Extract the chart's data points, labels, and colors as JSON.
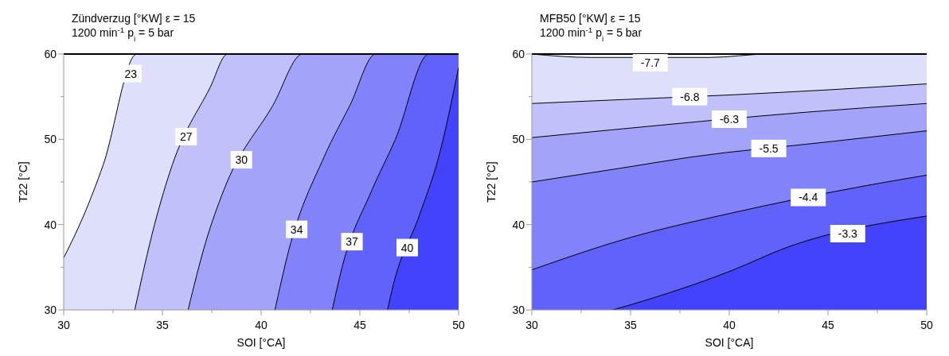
{
  "chart_data": [
    {
      "type": "area",
      "title": "Zündverzug [°KW] ε = 15",
      "subtitle": "1200 min$^{-1}$ p$_{i}$ = 5 bar",
      "xlabel": "SOI [°CA]",
      "ylabel": "T22 [°C]",
      "xlim": [
        30,
        50
      ],
      "ylim": [
        30,
        60
      ],
      "xticks": [
        30,
        {
          "value": 32.5,
          "label": null
        },
        35,
        {
          "value": 37.5,
          "label": null
        },
        40,
        {
          "value": 42.5,
          "label": null
        },
        45,
        {
          "value": 47.5,
          "label": null
        },
        50
      ],
      "yticks": [
        30,
        {
          "value": 35,
          "label": null
        },
        40,
        {
          "value": 45,
          "label": null
        },
        50,
        {
          "value": 55,
          "label": null
        },
        60
      ],
      "series": [
        {
          "name": "23",
          "color": "#dddffb",
          "x": [
            30,
            31,
            32,
            33.7,
            50
          ],
          "values": [
            36.1,
            41,
            47,
            60,
            60
          ]
        },
        {
          "name": "27",
          "color": "#c0c0fb",
          "x": [
            33.6,
            34.6,
            35.5,
            37.4,
            38.3,
            50
          ],
          "values": [
            30,
            40,
            47,
            56,
            60,
            60
          ]
        },
        {
          "name": "30",
          "color": "#a2a3f9",
          "x": [
            36.3,
            37.2,
            38.1,
            40.6,
            42.1,
            50
          ],
          "values": [
            30,
            38,
            44,
            54,
            60,
            60
          ]
        },
        {
          "name": "34",
          "color": "#8283fa",
          "x": [
            40.7,
            41.4,
            43.2,
            44.5,
            45.8,
            50
          ],
          "values": [
            30,
            37,
            48,
            54,
            60,
            60
          ]
        },
        {
          "name": "37",
          "color": "#6162fb",
          "x": [
            43.6,
            44.1,
            45.6,
            46.8,
            48.5,
            50
          ],
          "values": [
            30,
            35,
            44,
            50,
            60,
            60
          ]
        },
        {
          "name": "40",
          "color": "#4343fd",
          "x": [
            46.4,
            46.7,
            48,
            49,
            50
          ],
          "values": [
            30,
            33,
            41,
            48,
            58.4
          ]
        }
      ]
    },
    {
      "type": "area",
      "title": "MFB50 [°KW] ε = 15",
      "subtitle": "1200 min$^{-1}$ p$_{i}$ = 5 bar",
      "xlabel": "SOI [°CA]",
      "ylabel": "T22 [°C]",
      "xlim": [
        30,
        50
      ],
      "ylim": [
        30,
        60
      ],
      "xticks": [
        30,
        {
          "value": 32.5,
          "label": null
        },
        35,
        {
          "value": 37.5,
          "label": null
        },
        40,
        {
          "value": 42.5,
          "label": null
        },
        45,
        {
          "value": 47.5,
          "label": null
        },
        50
      ],
      "yticks": [
        30,
        {
          "value": 35,
          "label": null
        },
        40,
        {
          "value": 45,
          "label": null
        },
        50,
        {
          "value": 55,
          "label": null
        },
        60
      ],
      "series": [
        {
          "name": "-7.7",
          "color": "#dddffb",
          "x": [
            30,
            33,
            39,
            42,
            50
          ],
          "values": [
            60,
            59.6,
            59.6,
            60,
            60
          ]
        },
        {
          "name": "-6.8",
          "color": "#c0c0fb",
          "x": [
            30,
            35,
            40,
            45,
            50
          ],
          "values": [
            54.2,
            54.7,
            55.2,
            55.8,
            56.5
          ]
        },
        {
          "name": "-6.3",
          "color": "#a2a3f9",
          "x": [
            30,
            34,
            44,
            50
          ],
          "values": [
            50.2,
            51.1,
            53.2,
            54.2
          ]
        },
        {
          "name": "-5.5",
          "color": "#8283fa",
          "x": [
            30,
            35,
            38,
            45,
            50
          ],
          "values": [
            45,
            46.8,
            47.9,
            49.7,
            51
          ]
        },
        {
          "name": "-4.4",
          "color": "#6162fb",
          "x": [
            30,
            35,
            40,
            47,
            50
          ],
          "values": [
            34.7,
            38.5,
            41.3,
            44.6,
            45.8
          ]
        },
        {
          "name": "-3.3",
          "color": "#4343fd",
          "x": [
            34.1,
            35,
            40,
            43,
            50
          ],
          "values": [
            30,
            30.6,
            34.5,
            37.4,
            41
          ]
        }
      ]
    }
  ]
}
